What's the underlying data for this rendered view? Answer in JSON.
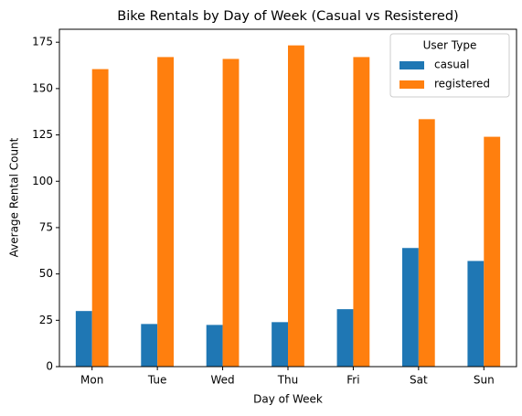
{
  "chart_data": {
    "type": "bar",
    "title": "Bike Rentals by Day of Week (Casual vs Resistered)",
    "x_label": "Day of Week",
    "y_label": "Average Rental Count",
    "categories": [
      "Mon",
      "Tue",
      "Wed",
      "Thu",
      "Fri",
      "Sat",
      "Sun"
    ],
    "series": [
      {
        "name": "casual",
        "color": "#1f77b4",
        "values": [
          30,
          23,
          22.5,
          24,
          31,
          64,
          57
        ]
      },
      {
        "name": "registered",
        "color": "#ff7f0e",
        "values": [
          160.5,
          167,
          166,
          173.3,
          167,
          133.5,
          124
        ]
      }
    ],
    "legend_title": "User Type",
    "legend_position": "upper right",
    "ylim": [
      0,
      182
    ],
    "yticks": [
      0,
      25,
      50,
      75,
      100,
      125,
      150,
      175
    ]
  }
}
